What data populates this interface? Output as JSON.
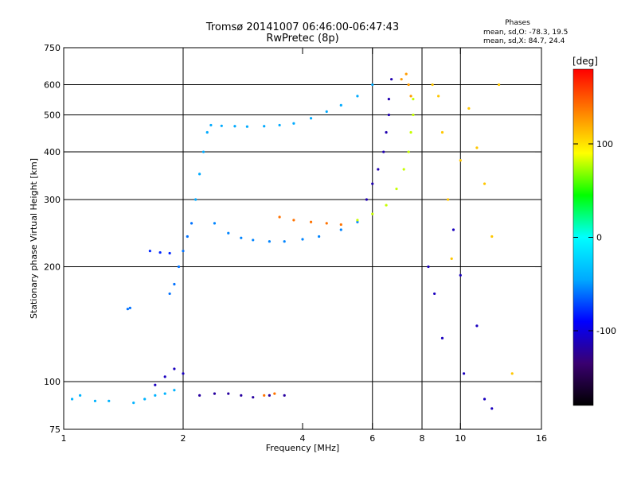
{
  "title": {
    "line1": "Tromsø 20141007 06:46:00-06:47:43",
    "line2": "RwPretec (8p)"
  },
  "stats": {
    "heading": "Phases",
    "line_o": "mean, sd,O: -78.3, 19.5",
    "line_x": "mean, sd,X: 84.7, 24.4"
  },
  "chart_data": {
    "type": "scatter",
    "xlabel": "Frequency [MHz]",
    "ylabel": "Stationary phase Virtual Height [km]",
    "x_scale": "log",
    "y_scale": "log",
    "xlim": [
      1,
      16
    ],
    "ylim": [
      75,
      750
    ],
    "x_ticks": [
      1,
      2,
      4,
      6,
      8,
      10,
      16
    ],
    "y_ticks": [
      75,
      100,
      200,
      300,
      400,
      500,
      600,
      750
    ],
    "grid_x": [
      2,
      6,
      8,
      10
    ],
    "grid_y": [
      100,
      200,
      300,
      400,
      500,
      600
    ],
    "colorbar": {
      "label": "[deg]",
      "range": [
        -180,
        180
      ],
      "ticks": [
        100,
        0,
        -100
      ],
      "colors": [
        "#000000",
        "#3a0070",
        "#0000ff",
        "#00aaff",
        "#00ffff",
        "#00ff00",
        "#ffff00",
        "#ff8000",
        "#ff0000"
      ]
    },
    "series": [
      {
        "x": [
          1.05,
          1.1,
          1.2,
          1.3
        ],
        "y": [
          90,
          92,
          89,
          89
        ],
        "phase": -40
      },
      {
        "x": [
          1.5,
          1.6,
          1.7,
          1.8,
          1.9
        ],
        "y": [
          88,
          90,
          92,
          93,
          95
        ],
        "phase": -40
      },
      {
        "x": [
          1.7,
          1.8,
          1.9,
          2.0
        ],
        "y": [
          98,
          103,
          108,
          105
        ],
        "phase": -110
      },
      {
        "x": [
          2.2,
          2.4,
          2.6,
          2.8,
          3.0,
          3.3,
          3.6
        ],
        "y": [
          92,
          93,
          93,
          92,
          91,
          92,
          92
        ],
        "phase": -120
      },
      {
        "x": [
          3.2,
          3.4
        ],
        "y": [
          92,
          93
        ],
        "phase": 140
      },
      {
        "x": [
          1.45,
          1.47
        ],
        "y": [
          155,
          156
        ],
        "phase": -60
      },
      {
        "x": [
          1.65,
          1.75,
          1.85
        ],
        "y": [
          220,
          218,
          217
        ],
        "phase": -80
      },
      {
        "x": [
          1.85,
          1.9,
          1.95,
          2.0,
          2.05,
          2.1
        ],
        "y": [
          170,
          180,
          200,
          220,
          240,
          260
        ],
        "phase": -60
      },
      {
        "x": [
          2.15,
          2.2,
          2.25,
          2.3
        ],
        "y": [
          300,
          350,
          400,
          450
        ],
        "phase": -45
      },
      {
        "x": [
          2.4,
          2.6,
          2.8,
          3.0,
          3.3,
          3.6,
          4.0,
          4.4,
          5.0,
          5.5
        ],
        "y": [
          260,
          245,
          238,
          235,
          233,
          233,
          236,
          240,
          250,
          262
        ],
        "phase": -55
      },
      {
        "x": [
          2.35,
          2.5,
          2.7,
          2.9,
          3.2,
          3.5,
          3.8,
          4.2,
          4.6,
          5.0,
          5.5,
          6.0
        ],
        "y": [
          470,
          468,
          467,
          466,
          467,
          470,
          475,
          490,
          510,
          530,
          560,
          600
        ],
        "phase": -45
      },
      {
        "x": [
          3.5,
          3.8,
          4.2,
          4.6,
          5.0
        ],
        "y": [
          270,
          265,
          262,
          260,
          258
        ],
        "phase": 140
      },
      {
        "x": [
          5.8,
          6.0,
          6.2,
          6.4,
          6.5,
          6.6,
          6.6,
          6.7
        ],
        "y": [
          300,
          330,
          360,
          400,
          450,
          500,
          550,
          620
        ],
        "phase": -115
      },
      {
        "x": [
          5.5,
          6.0,
          6.5,
          6.9,
          7.2,
          7.4,
          7.5,
          7.6,
          7.6
        ],
        "y": [
          265,
          275,
          290,
          320,
          360,
          400,
          450,
          500,
          550
        ],
        "phase": 80
      },
      {
        "x": [
          7.1,
          7.3,
          7.4,
          7.5
        ],
        "y": [
          620,
          640,
          600,
          560
        ],
        "phase": 125
      },
      {
        "x": [
          8.5,
          8.8,
          9.0,
          9.3,
          9.5,
          10.0,
          10.5,
          11.0,
          11.5,
          12.0,
          12.5,
          13.5
        ],
        "y": [
          600,
          560,
          450,
          300,
          210,
          380,
          520,
          410,
          330,
          240,
          600,
          105
        ],
        "phase": 110
      },
      {
        "x": [
          8.3,
          8.6,
          9.0,
          9.6,
          10.0,
          10.2,
          11.0,
          11.5,
          12.0
        ],
        "y": [
          200,
          170,
          130,
          250,
          190,
          105,
          140,
          90,
          85
        ],
        "phase": -110
      }
    ]
  }
}
